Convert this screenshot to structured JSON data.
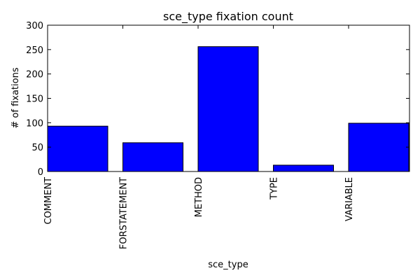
{
  "chart_data": {
    "type": "bar",
    "title": "sce_type fixation count",
    "xlabel": "sce_type",
    "ylabel": "# of fixations",
    "categories": [
      "COMMENT",
      "FORSTATEMENT",
      "METHOD",
      "TYPE",
      "VARIABLE"
    ],
    "values": [
      93,
      59,
      256,
      13,
      99
    ],
    "ylim": [
      0,
      300
    ],
    "yticks": [
      0,
      50,
      100,
      150,
      200,
      250,
      300
    ],
    "bar_color": "#0000ff",
    "edge_color": "#000000",
    "grid": false,
    "legend": "none"
  }
}
